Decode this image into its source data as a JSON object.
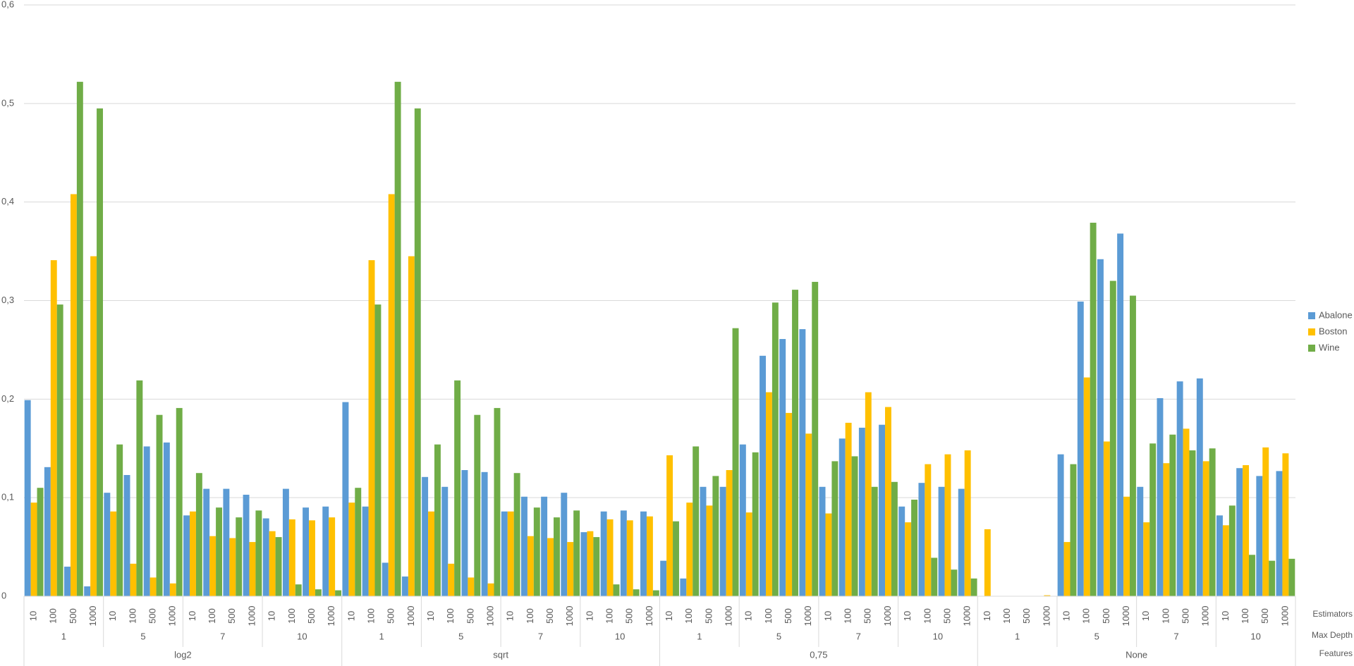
{
  "chart_data": {
    "type": "bar",
    "categories": [
      "10",
      "100",
      "500",
      "1000",
      "10",
      "100",
      "500",
      "1000",
      "10",
      "100",
      "500",
      "1000",
      "10",
      "100",
      "500",
      "1000",
      "10",
      "100",
      "500",
      "1000",
      "10",
      "100",
      "500",
      "1000",
      "10",
      "100",
      "500",
      "1000",
      "10",
      "100",
      "500",
      "1000",
      "10",
      "100",
      "500",
      "1000",
      "10",
      "100",
      "500",
      "1000",
      "10",
      "100",
      "500",
      "1000",
      "10",
      "100",
      "500",
      "1000",
      "10",
      "100",
      "500",
      "1000",
      "10",
      "100",
      "500",
      "1000",
      "10",
      "100",
      "500",
      "1000",
      "10",
      "100",
      "500",
      "1000"
    ],
    "depth_groups": [
      "1",
      "5",
      "7",
      "10",
      "1",
      "5",
      "7",
      "10",
      "1",
      "5",
      "7",
      "10",
      "1",
      "5",
      "7",
      "10"
    ],
    "feature_groups": [
      "log2",
      "sqrt",
      "0,75",
      "None"
    ],
    "level_titles": [
      "Estimators",
      "Max Depth",
      "Features"
    ],
    "series": [
      {
        "name": "Abalone",
        "color": "#5b9bd5",
        "values": [
          0.199,
          0.131,
          0.03,
          0.01,
          0.105,
          0.123,
          0.152,
          0.156,
          0.082,
          0.109,
          0.109,
          0.103,
          0.079,
          0.109,
          0.09,
          0.091,
          0.197,
          0.091,
          0.034,
          0.02,
          0.121,
          0.111,
          0.128,
          0.126,
          0.086,
          0.101,
          0.101,
          0.105,
          0.065,
          0.086,
          0.087,
          0.086,
          0.036,
          0.018,
          0.111,
          0.111,
          0.154,
          0.244,
          0.261,
          0.271,
          0.111,
          0.16,
          0.171,
          0.174,
          0.091,
          0.115,
          0.111,
          0.109,
          0,
          0,
          0,
          0,
          0.144,
          0.299,
          0.342,
          0.368,
          0.111,
          0.201,
          0.218,
          0.221,
          0.082,
          0.13,
          0.122,
          0.127
        ]
      },
      {
        "name": "Boston",
        "color": "#ffc000",
        "values": [
          0.095,
          0.341,
          0.408,
          0.345,
          0.086,
          0.033,
          0.019,
          0.013,
          0.086,
          0.061,
          0.059,
          0.055,
          0.066,
          0.078,
          0.077,
          0.08,
          0.095,
          0.341,
          0.408,
          0.345,
          0.086,
          0.033,
          0.019,
          0.013,
          0.086,
          0.061,
          0.059,
          0.055,
          0.066,
          0.078,
          0.077,
          0.081,
          0.143,
          0.095,
          0.092,
          0.128,
          0.085,
          0.207,
          0.186,
          0.165,
          0.084,
          0.176,
          0.207,
          0.192,
          0.075,
          0.134,
          0.144,
          0.148,
          0.068,
          0,
          0,
          0.001,
          0.055,
          0.222,
          0.157,
          0.101,
          0.075,
          0.135,
          0.17,
          0.137,
          0.072,
          0.133,
          0.151,
          0.145
        ]
      },
      {
        "name": "Wine",
        "color": "#70ad47",
        "values": [
          0.11,
          0.296,
          0.522,
          0.495,
          0.154,
          0.219,
          0.184,
          0.191,
          0.125,
          0.09,
          0.08,
          0.087,
          0.06,
          0.012,
          0.007,
          0.006,
          0.11,
          0.296,
          0.522,
          0.495,
          0.154,
          0.219,
          0.184,
          0.191,
          0.125,
          0.09,
          0.08,
          0.087,
          0.06,
          0.012,
          0.007,
          0.006,
          0.076,
          0.152,
          0.122,
          0.272,
          0.146,
          0.298,
          0.311,
          0.319,
          0.137,
          0.142,
          0.111,
          0.116,
          0.098,
          0.039,
          0.027,
          0.018,
          0,
          0,
          0,
          0,
          0.134,
          0.379,
          0.32,
          0.305,
          0.155,
          0.164,
          0.148,
          0.15,
          0.092,
          0.042,
          0.036,
          0.038
        ]
      }
    ],
    "ylim": [
      0,
      0.6
    ],
    "yticks": [
      0,
      {
        "value": 0.1,
        "label": "0,1"
      },
      {
        "value": 0.2,
        "label": "0,2"
      },
      {
        "value": 0.3,
        "label": "0,3"
      },
      {
        "value": 0.4,
        "label": "0,4"
      },
      {
        "value": 0.5,
        "label": "0,5"
      },
      {
        "value": 0.6,
        "label": "0,6"
      }
    ],
    "grid": true,
    "legend": "right"
  }
}
